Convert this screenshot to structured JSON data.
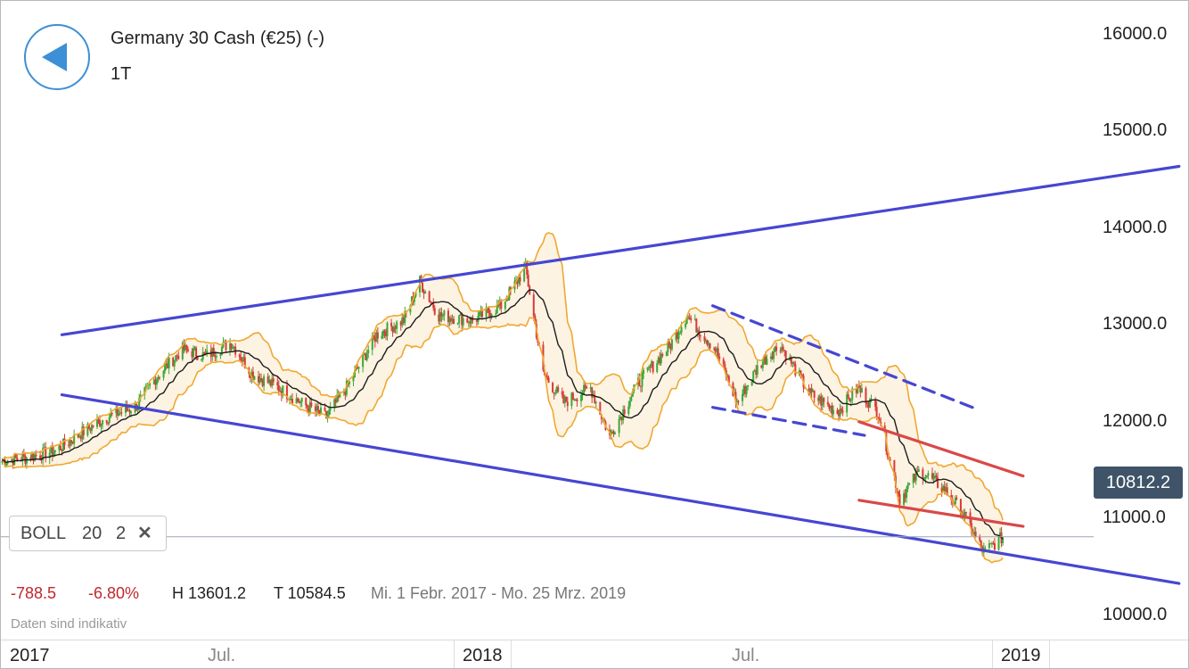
{
  "header": {
    "title": "Germany 30 Cash (€25) (-)",
    "timeframe": "1T"
  },
  "price_tag": "10812.2",
  "indicator": {
    "name": "BOLL",
    "period": "20",
    "stddev": "2",
    "close_icon": "close-icon"
  },
  "stats": {
    "change_abs": "-788.5",
    "change_pct": "-6.80%",
    "high": "H 13601.2",
    "low": "T 10584.5",
    "range": "Mi. 1 Febr. 2017 - Mo. 25 Mrz. 2019"
  },
  "disclaimer": "Daten sind indikativ",
  "timeline": {
    "labels": [
      "2017",
      "Jul.",
      "2018",
      "Jul.",
      "2019"
    ]
  },
  "colors": {
    "up": "#3aa83a",
    "down": "#d93a3a",
    "band": "#f0a830",
    "band_fill": "#fdf3e3",
    "middle": "#1c1c1c",
    "trend_blue": "#4646d2",
    "trend_red": "#d94848",
    "price_line": "#9aa6b8",
    "accent": "#3d8fd6"
  },
  "chart_data": {
    "type": "candlestick",
    "instrument": "Germany 30 Cash (€25) (-)",
    "interval": "1T",
    "yaxis_ticks": [
      "10000.0",
      "11000.0",
      "12000.0",
      "13000.0",
      "14000.0",
      "15000.0",
      "16000.0"
    ],
    "ylim": [
      9750,
      16350
    ],
    "x_range": [
      "2017-01-01",
      "2019-05-28"
    ],
    "last_price": 10812.2,
    "indicator": "Bollinger Bands (20, 2)",
    "close_path": [
      [
        "2017-01-02",
        11600
      ],
      [
        "2017-01-20",
        11630
      ],
      [
        "2017-02-10",
        11700
      ],
      [
        "2017-03-01",
        11880
      ],
      [
        "2017-03-20",
        12050
      ],
      [
        "2017-04-10",
        12150
      ],
      [
        "2017-04-25",
        12450
      ],
      [
        "2017-05-15",
        12750
      ],
      [
        "2017-06-01",
        12680
      ],
      [
        "2017-06-20",
        12820
      ],
      [
        "2017-07-05",
        12500
      ],
      [
        "2017-07-25",
        12350
      ],
      [
        "2017-08-10",
        12200
      ],
      [
        "2017-08-29",
        12050
      ],
      [
        "2017-09-15",
        12400
      ],
      [
        "2017-10-05",
        12900
      ],
      [
        "2017-10-25",
        13050
      ],
      [
        "2017-11-06",
        13450
      ],
      [
        "2017-11-20",
        13100
      ],
      [
        "2017-12-15",
        13050
      ],
      [
        "2018-01-05",
        13200
      ],
      [
        "2018-01-23",
        13590
      ],
      [
        "2018-02-05",
        12500
      ],
      [
        "2018-02-20",
        12200
      ],
      [
        "2018-03-12",
        12350
      ],
      [
        "2018-03-26",
        11850
      ],
      [
        "2018-04-16",
        12400
      ],
      [
        "2018-05-10",
        12800
      ],
      [
        "2018-05-22",
        13100
      ],
      [
        "2018-06-12",
        12750
      ],
      [
        "2018-06-28",
        12200
      ],
      [
        "2018-07-15",
        12600
      ],
      [
        "2018-07-30",
        12800
      ],
      [
        "2018-08-20",
        12300
      ],
      [
        "2018-09-10",
        12100
      ],
      [
        "2018-09-25",
        12350
      ],
      [
        "2018-10-10",
        12100
      ],
      [
        "2018-10-26",
        11200
      ],
      [
        "2018-11-10",
        11500
      ],
      [
        "2018-11-28",
        11300
      ],
      [
        "2018-12-12",
        11050
      ],
      [
        "2018-12-27",
        10650
      ],
      [
        "2019-01-10",
        10812
      ]
    ],
    "trendlines": [
      {
        "color": "blue",
        "from": [
          "2017-02-15",
          12900
        ],
        "to": [
          "2019-05-20",
          14640
        ]
      },
      {
        "color": "blue",
        "from": [
          "2017-02-15",
          12280
        ],
        "to": [
          "2019-05-20",
          10330
        ]
      },
      {
        "color": "blue",
        "style": "dashed",
        "from": [
          "2018-06-10",
          13200
        ],
        "to": [
          "2018-12-24",
          12120
        ]
      },
      {
        "color": "blue",
        "style": "dashed",
        "from": [
          "2018-06-10",
          12150
        ],
        "to": [
          "2018-09-30",
          11860
        ]
      },
      {
        "color": "red",
        "from": [
          "2018-09-26",
          12000
        ],
        "to": [
          "2019-01-25",
          11440
        ]
      },
      {
        "color": "red",
        "from": [
          "2018-09-26",
          11190
        ],
        "to": [
          "2019-01-25",
          10920
        ]
      }
    ]
  }
}
